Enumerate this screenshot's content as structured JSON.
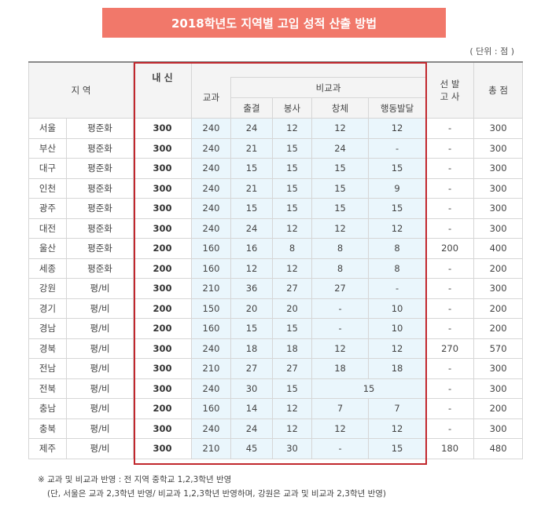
{
  "title": "2018학년도 지역별 고입 성적 산출 방법",
  "unit": "( 단위 : 점 )",
  "headers": {
    "region": "지 역",
    "naesin": "내 신",
    "gyogwa": "교과",
    "bigyogwa": "비교과",
    "attendance": "출결",
    "service": "봉사",
    "physical": "창체",
    "behavior": "행동발달",
    "selection_line1": "선 발",
    "selection_line2": "고 사",
    "total": "총 점"
  },
  "rows": [
    {
      "region": "서울",
      "type": "평준화",
      "naesin": "300",
      "gyogwa": "240",
      "att": "24",
      "svc": "12",
      "phy": "12",
      "beh": "12",
      "sel": "-",
      "total": "300"
    },
    {
      "region": "부산",
      "type": "평준화",
      "naesin": "300",
      "gyogwa": "240",
      "att": "21",
      "svc": "15",
      "phy": "24",
      "beh": "-",
      "sel": "-",
      "total": "300"
    },
    {
      "region": "대구",
      "type": "평준화",
      "naesin": "300",
      "gyogwa": "240",
      "att": "15",
      "svc": "15",
      "phy": "15",
      "beh": "15",
      "sel": "-",
      "total": "300"
    },
    {
      "region": "인천",
      "type": "평준화",
      "naesin": "300",
      "gyogwa": "240",
      "att": "21",
      "svc": "15",
      "phy": "15",
      "beh": "9",
      "sel": "-",
      "total": "300"
    },
    {
      "region": "광주",
      "type": "평준화",
      "naesin": "300",
      "gyogwa": "240",
      "att": "15",
      "svc": "15",
      "phy": "15",
      "beh": "15",
      "sel": "-",
      "total": "300"
    },
    {
      "region": "대전",
      "type": "평준화",
      "naesin": "300",
      "gyogwa": "240",
      "att": "24",
      "svc": "12",
      "phy": "12",
      "beh": "12",
      "sel": "-",
      "total": "300"
    },
    {
      "region": "울산",
      "type": "평준화",
      "naesin": "200",
      "gyogwa": "160",
      "att": "16",
      "svc": "8",
      "phy": "8",
      "beh": "8",
      "sel": "200",
      "total": "400"
    },
    {
      "region": "세종",
      "type": "평준화",
      "naesin": "200",
      "gyogwa": "160",
      "att": "12",
      "svc": "12",
      "phy": "8",
      "beh": "8",
      "sel": "-",
      "total": "200"
    },
    {
      "region": "강원",
      "type": "평/비",
      "naesin": "300",
      "gyogwa": "210",
      "att": "36",
      "svc": "27",
      "phy": "27",
      "beh": "-",
      "sel": "-",
      "total": "300"
    },
    {
      "region": "경기",
      "type": "평/비",
      "naesin": "200",
      "gyogwa": "150",
      "att": "20",
      "svc": "20",
      "phy": "-",
      "beh": "10",
      "sel": "-",
      "total": "200"
    },
    {
      "region": "경남",
      "type": "평/비",
      "naesin": "200",
      "gyogwa": "160",
      "att": "15",
      "svc": "15",
      "phy": "-",
      "beh": "10",
      "sel": "-",
      "total": "200"
    },
    {
      "region": "경북",
      "type": "평/비",
      "naesin": "300",
      "gyogwa": "240",
      "att": "18",
      "svc": "18",
      "phy": "12",
      "beh": "12",
      "sel": "270",
      "total": "570"
    },
    {
      "region": "전남",
      "type": "평/비",
      "naesin": "300",
      "gyogwa": "210",
      "att": "27",
      "svc": "27",
      "phy": "18",
      "beh": "18",
      "sel": "-",
      "total": "300"
    },
    {
      "region": "전북",
      "type": "평/비",
      "naesin": "300",
      "gyogwa": "240",
      "att": "30",
      "svc": "15",
      "merged": "15",
      "sel": "-",
      "total": "300"
    },
    {
      "region": "충남",
      "type": "평/비",
      "naesin": "200",
      "gyogwa": "160",
      "att": "14",
      "svc": "12",
      "phy": "7",
      "beh": "7",
      "sel": "-",
      "total": "200"
    },
    {
      "region": "충북",
      "type": "평/비",
      "naesin": "300",
      "gyogwa": "240",
      "att": "24",
      "svc": "12",
      "phy": "12",
      "beh": "12",
      "sel": "-",
      "total": "300"
    },
    {
      "region": "제주",
      "type": "평/비",
      "naesin": "300",
      "gyogwa": "210",
      "att": "45",
      "svc": "30",
      "phy": "-",
      "beh": "15",
      "sel": "180",
      "total": "480"
    }
  ],
  "notes": {
    "line1": "※ 교과 및 비교과 반영 : 전 지역 중학교 1,2,3학년 반영",
    "line2": "(단, 서울은 교과 2,3학년 반영/ 비교과 1,2,3학년 반영하며, 강원은 교과 및 비교과 2,3학년 반영)"
  }
}
